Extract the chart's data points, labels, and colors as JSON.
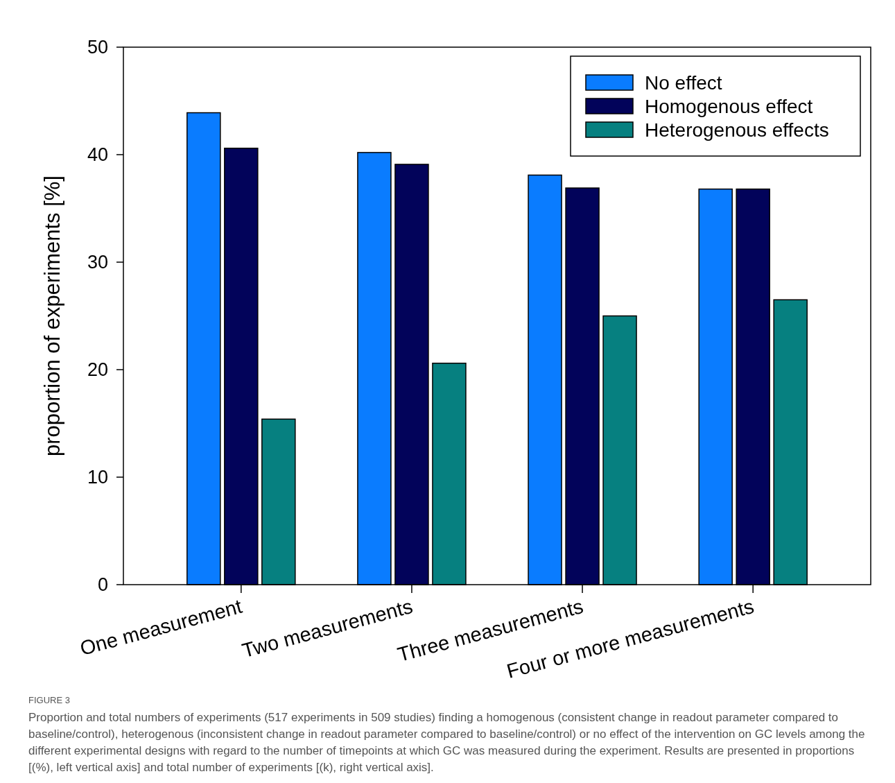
{
  "chart_data": {
    "type": "bar",
    "ylabel": "proportion of experiments [%]",
    "categories": [
      "One measurement",
      "Two measurements",
      "Three measurements",
      "Four or more measurements"
    ],
    "series": [
      {
        "name": "No effect",
        "color": "#0a7cff",
        "values": [
          43.9,
          40.2,
          38.1,
          36.8
        ]
      },
      {
        "name": "Homogenous effect",
        "color": "#02035a",
        "values": [
          40.6,
          39.1,
          36.9,
          36.8
        ]
      },
      {
        "name": "Heterogenous effects",
        "color": "#068080",
        "values": [
          15.4,
          20.6,
          25.0,
          26.5
        ]
      }
    ],
    "ylim": [
      0,
      50
    ],
    "yticks": [
      0,
      10,
      20,
      30,
      40,
      50
    ],
    "grid": false,
    "legend": "top right",
    "annotations": [
      "FIGURE 3",
      "Proportion and total numbers of experiments (517 experiments in 509 studies) finding a homogenous (consistent change in readout parameter compared to baseline/control), heterogenous (inconsistent change in readout parameter compared to baseline/control) or no effect of the intervention on GC levels among the different experimental designs with regard to the number of timepoints at which GC was measured during the experiment. Results are presented in proportions [(%), left vertical axis] and total number of experiments [(k), right vertical axis]."
    ]
  }
}
